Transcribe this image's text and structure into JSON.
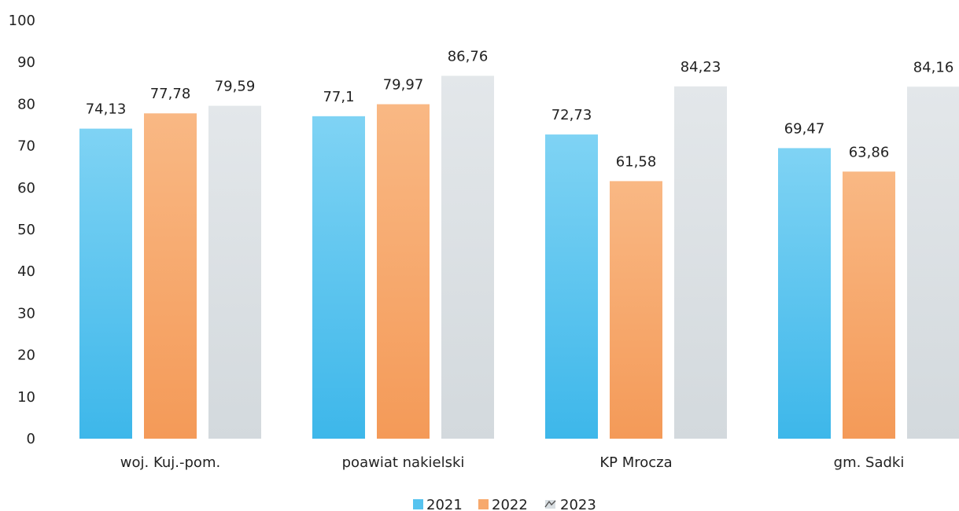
{
  "chart_data": {
    "type": "bar",
    "categories": [
      "woj. Kuj.-pom.",
      "poawiat nakielski",
      "KP Mrocza",
      "gm. Sadki"
    ],
    "series": [
      {
        "name": "2021",
        "color": "#56C3EF",
        "values": [
          74.13,
          77.1,
          72.73,
          69.47
        ],
        "labels": [
          "74,13",
          "77,1",
          "72,73",
          "69,47"
        ]
      },
      {
        "name": "2022",
        "color": "#F7A96D",
        "values": [
          77.78,
          79.97,
          61.58,
          63.86
        ],
        "labels": [
          "77,78",
          "79,97",
          "61,58",
          "63,86"
        ]
      },
      {
        "name": "2023",
        "color": "#D8DEE2",
        "values": [
          79.59,
          86.76,
          84.23,
          84.16
        ],
        "labels": [
          "79,59",
          "86,76",
          "84,23",
          "84,16"
        ]
      }
    ],
    "ylim": [
      0,
      100
    ],
    "yticks": [
      0,
      10,
      20,
      30,
      40,
      50,
      60,
      70,
      80,
      90,
      100
    ],
    "grid": false,
    "legend": "bottom"
  }
}
